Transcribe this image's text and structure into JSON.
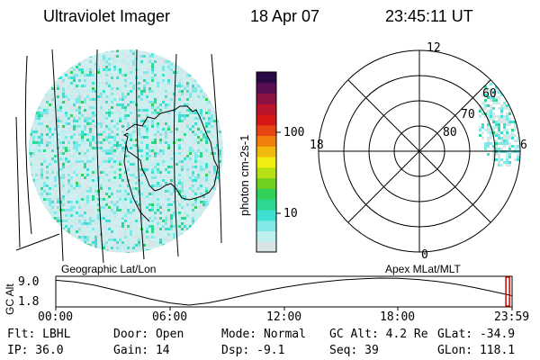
{
  "header": {
    "title": "Ultraviolet Imager",
    "date": "18 Apr 07",
    "time": "23:45:11 UT"
  },
  "colorbar": {
    "unit": "photon cm-2s-1",
    "ticks": [
      {
        "label": "100",
        "value": 100
      },
      {
        "label": "10",
        "value": 10
      }
    ],
    "colors": [
      "#d8e4e6",
      "#bcefee",
      "#80e8e6",
      "#3fe0d2",
      "#2ed890",
      "#33d05a",
      "#6fd020",
      "#b6df16",
      "#f0ee10",
      "#f2b90d",
      "#ee7f0a",
      "#e84411",
      "#d81717",
      "#b8142a",
      "#8c1144",
      "#5a0f55",
      "#2a0a45"
    ]
  },
  "geo_panel": {
    "label": "Geographic Lat/Lon"
  },
  "polar_panel": {
    "label": "Apex  MLat/MLT",
    "mlt_labels": [
      {
        "text": "12",
        "pos": "top"
      },
      {
        "text": "18",
        "pos": "left"
      },
      {
        "text": "6",
        "pos": "right"
      },
      {
        "text": "0",
        "pos": "bottom"
      }
    ],
    "lat_labels": [
      "60",
      "70",
      "80"
    ]
  },
  "altitude_plot": {
    "ylabel": "GC Alt",
    "yticks": [
      "9.0",
      "1.8"
    ],
    "xticks": [
      "00:00",
      "06:00",
      "12:00",
      "18:00",
      "23:59"
    ],
    "curve_points": [
      [
        0,
        0.92
      ],
      [
        1,
        0.86
      ],
      [
        2,
        0.74
      ],
      [
        3,
        0.58
      ],
      [
        4,
        0.4
      ],
      [
        5,
        0.22
      ],
      [
        6,
        0.08
      ],
      [
        7,
        0.0
      ],
      [
        8,
        0.08
      ],
      [
        9,
        0.22
      ],
      [
        10,
        0.38
      ],
      [
        11,
        0.53
      ],
      [
        12,
        0.66
      ],
      [
        13,
        0.77
      ],
      [
        14,
        0.86
      ],
      [
        15,
        0.93
      ],
      [
        16,
        0.97
      ],
      [
        17,
        1.0
      ],
      [
        18,
        0.99
      ],
      [
        19,
        0.95
      ],
      [
        20,
        0.88
      ],
      [
        21,
        0.78
      ],
      [
        22,
        0.65
      ],
      [
        23,
        0.5
      ],
      [
        23.98,
        0.35
      ]
    ],
    "marker_hour": 23.75
  },
  "status": {
    "flt": "Flt: LBHL",
    "door": "Door: Open",
    "mode": "Mode: Normal",
    "gcalt": "GC Alt: 4.2 Re",
    "glat": "GLat: -34.9",
    "ip": "IP: 36.0",
    "gain": "Gain: 14",
    "dsp": "Dsp:   -9.1",
    "seq": "Seq: 39",
    "glon": "GLon: 118.1"
  }
}
